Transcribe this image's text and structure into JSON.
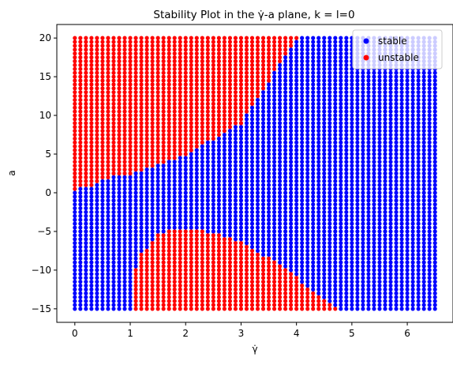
{
  "chart_data": {
    "type": "scatter",
    "title": "Stability Plot in the γ̇-a plane, k = l=0",
    "xlabel": "γ̇",
    "ylabel": "a",
    "xlim": [
      -0.325,
      6.825
    ],
    "ylim": [
      -16.75,
      21.75
    ],
    "x_ticks": [
      0,
      1,
      2,
      3,
      4,
      5,
      6
    ],
    "y_ticks": [
      -15,
      -10,
      -5,
      0,
      5,
      10,
      15,
      20
    ],
    "grid": false,
    "legend_position": "top-right",
    "series": [
      {
        "name": "stable",
        "color": "#0000ff"
      },
      {
        "name": "unstable",
        "color": "#ff0000"
      }
    ],
    "sampling": {
      "x_start": 0,
      "x_end": 6.5,
      "x_step": 0.1,
      "y_start": -15,
      "y_end": 20,
      "y_step": 0.5
    },
    "regions": {
      "unstable_upper_boundary": [
        [
          0,
          0.5
        ],
        [
          0.3,
          1.0
        ],
        [
          0.5,
          1.7
        ],
        [
          1.0,
          2.5
        ],
        [
          2.0,
          5.0
        ],
        [
          3.0,
          9.0
        ],
        [
          4.0,
          20.0
        ]
      ],
      "unstable_lower_top": [
        [
          1.05,
          -10.5
        ],
        [
          1.2,
          -8.0
        ],
        [
          1.5,
          -5.5
        ],
        [
          1.8,
          -4.7
        ],
        [
          2.2,
          -4.8
        ],
        [
          2.6,
          -5.5
        ],
        [
          3.0,
          -6.5
        ],
        [
          3.5,
          -8.5
        ],
        [
          4.0,
          -11.0
        ],
        [
          4.5,
          -13.8
        ],
        [
          4.75,
          -15.0
        ]
      ],
      "unstable_lower_bottom": [
        [
          1.05,
          -15
        ],
        [
          4.75,
          -15
        ]
      ]
    }
  }
}
